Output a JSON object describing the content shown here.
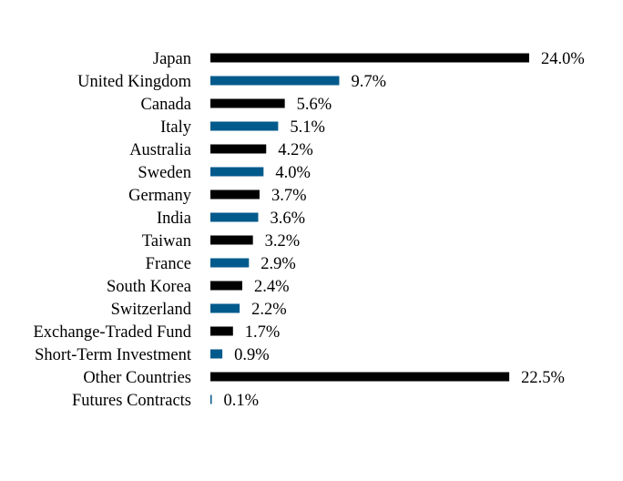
{
  "chart_data": {
    "type": "bar",
    "orientation": "horizontal",
    "categories": [
      "Japan",
      "United Kingdom",
      "Canada",
      "Italy",
      "Australia",
      "Sweden",
      "Germany",
      "India",
      "Taiwan",
      "France",
      "South Korea",
      "Switzerland",
      "Exchange-Traded Fund",
      "Short-Term Investment",
      "Other Countries",
      "Futures Contracts"
    ],
    "values": [
      24.0,
      9.7,
      5.6,
      5.1,
      4.2,
      4.0,
      3.7,
      3.6,
      3.2,
      2.9,
      2.4,
      2.2,
      1.7,
      0.9,
      22.5,
      0.1
    ],
    "value_labels": [
      "24.0%",
      "9.7%",
      "5.6%",
      "5.1%",
      "4.2%",
      "4.0%",
      "3.7%",
      "3.6%",
      "3.2%",
      "2.9%",
      "2.4%",
      "2.2%",
      "1.7%",
      "0.9%",
      "22.5%",
      "0.1%"
    ],
    "colors": [
      "#000000",
      "#005a8c"
    ],
    "title": "",
    "xlabel": "",
    "ylabel": "",
    "xlim": [
      0,
      24.0
    ],
    "grid": false,
    "legend": "none"
  }
}
